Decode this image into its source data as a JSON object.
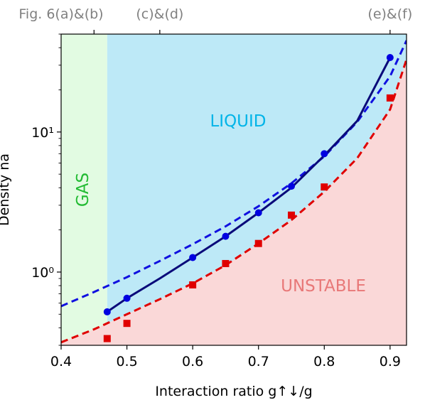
{
  "chart_data": {
    "type": "line",
    "xlabel": "Interaction ratio g↑↓/g",
    "ylabel": "Density na",
    "x_scale": "linear",
    "y_scale": "log",
    "xlim": [
      0.4,
      0.925
    ],
    "ylim": [
      0.3,
      50
    ],
    "x_ticks": [
      0.4,
      0.5,
      0.6,
      0.7,
      0.8,
      0.9
    ],
    "x_tick_labels": [
      "0.4",
      "0.5",
      "0.6",
      "0.7",
      "0.8",
      "0.9"
    ],
    "y_ticks": [
      1,
      10
    ],
    "y_tick_labels": [
      "10⁰",
      "10¹"
    ],
    "top_axis": {
      "ticks": [
        0.45,
        0.55,
        0.9
      ],
      "labels": [
        "Fig. 6(a)&(b)",
        "(c)&(d)",
        "(e)&(f)"
      ]
    },
    "regions": [
      {
        "label": "GAS",
        "color": "#22bb33"
      },
      {
        "label": "LIQUID",
        "color": "#00b4e8"
      },
      {
        "label": "UNSTABLE",
        "color": "#e87878"
      }
    ],
    "region_fill_colors": {
      "gas": "#e2fbe2",
      "liquid": "#bde9f7",
      "unstable": "#fad8d8"
    },
    "gas_liquid_boundary_x": 0.47,
    "series": [
      {
        "role": "liquid-points",
        "color": "#0000e0",
        "marker": "circle",
        "x": [
          0.47,
          0.5,
          0.6,
          0.65,
          0.7,
          0.75,
          0.8,
          0.9
        ],
        "y": [
          0.52,
          0.65,
          1.27,
          1.8,
          2.65,
          4.1,
          7.0,
          34.0
        ]
      },
      {
        "role": "liquid-solid-curve",
        "color": "#0a0a7a",
        "x": [
          0.47,
          0.5,
          0.55,
          0.6,
          0.65,
          0.7,
          0.75,
          0.8,
          0.85,
          0.9
        ],
        "y": [
          0.52,
          0.65,
          0.9,
          1.27,
          1.8,
          2.65,
          4.0,
          6.8,
          12.0,
          34.0
        ]
      },
      {
        "role": "liquid-dashed-fit",
        "color": "#1010e0",
        "x": [
          0.4,
          0.45,
          0.5,
          0.55,
          0.6,
          0.65,
          0.7,
          0.75,
          0.8,
          0.85,
          0.9,
          0.925
        ],
        "y": [
          0.57,
          0.72,
          0.92,
          1.2,
          1.58,
          2.12,
          2.95,
          4.3,
          6.7,
          11.8,
          25.0,
          45.0
        ]
      },
      {
        "role": "unstable-points",
        "color": "#e00000",
        "marker": "square",
        "x": [
          0.47,
          0.5,
          0.6,
          0.65,
          0.7,
          0.75,
          0.8,
          0.9
        ],
        "y": [
          0.335,
          0.43,
          0.81,
          1.15,
          1.6,
          2.55,
          4.05,
          17.5
        ]
      },
      {
        "role": "unstable-dashed-fit",
        "color": "#e00000",
        "x": [
          0.4,
          0.45,
          0.5,
          0.55,
          0.6,
          0.65,
          0.7,
          0.75,
          0.8,
          0.85,
          0.9,
          0.925
        ],
        "y": [
          0.315,
          0.39,
          0.5,
          0.64,
          0.83,
          1.12,
          1.6,
          2.35,
          3.75,
          6.5,
          14.5,
          33.0
        ]
      }
    ]
  }
}
